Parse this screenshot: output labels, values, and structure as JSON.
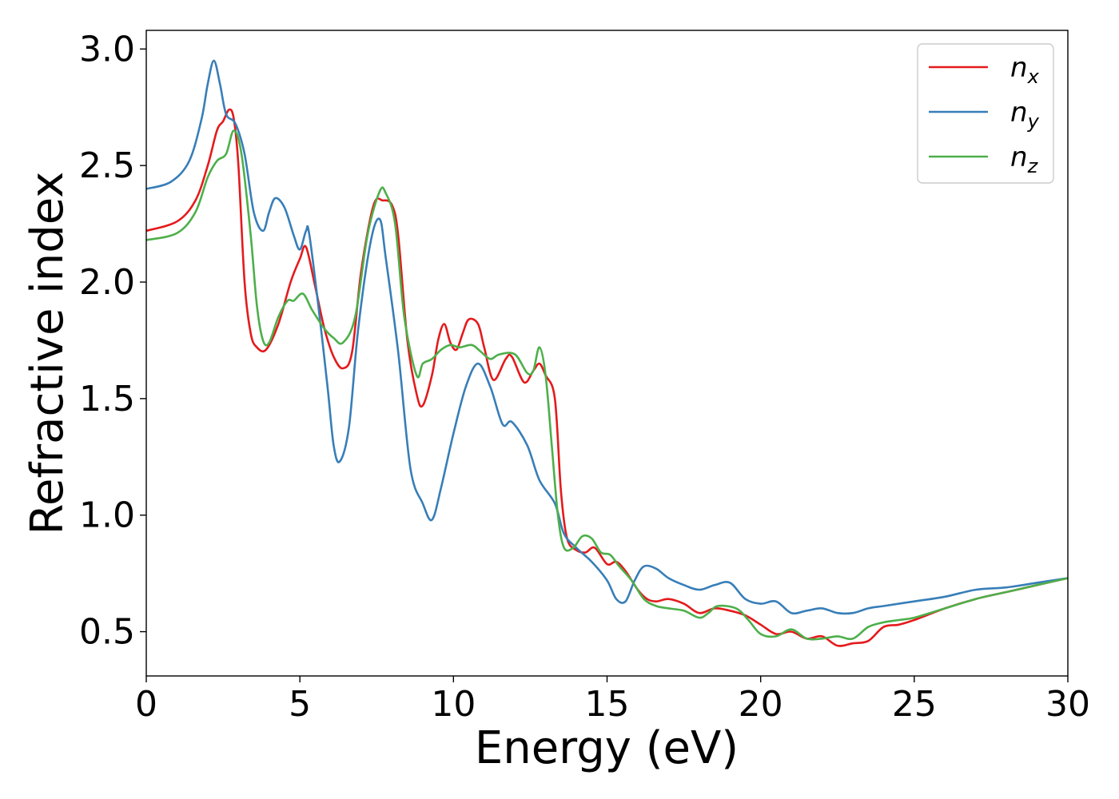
{
  "chart_data": {
    "type": "line",
    "xlabel": "Energy (eV)",
    "ylabel": "Refractive index",
    "xlim": [
      0,
      30
    ],
    "ylim": [
      0.31,
      3.08
    ],
    "xticks": [
      0,
      5,
      10,
      15,
      20,
      25,
      30
    ],
    "xtick_labels": [
      "0",
      "5",
      "10",
      "15",
      "20",
      "25",
      "30"
    ],
    "yticks": [
      0.5,
      1.0,
      1.5,
      2.0,
      2.5,
      3.0
    ],
    "ytick_labels": [
      "0.5",
      "1.0",
      "1.5",
      "2.0",
      "2.5",
      "3.0"
    ],
    "grid": false,
    "legend_position": "top-right",
    "series": [
      {
        "name": "n",
        "subscript": "x",
        "color": "#e41a1c",
        "points": [
          [
            0,
            2.22
          ],
          [
            1,
            2.26
          ],
          [
            1.6,
            2.35
          ],
          [
            2,
            2.5
          ],
          [
            2.3,
            2.65
          ],
          [
            2.5,
            2.69
          ],
          [
            2.7,
            2.74
          ],
          [
            2.85,
            2.7
          ],
          [
            3.0,
            2.5
          ],
          [
            3.2,
            2.0
          ],
          [
            3.4,
            1.78
          ],
          [
            3.6,
            1.72
          ],
          [
            3.9,
            1.71
          ],
          [
            4.3,
            1.82
          ],
          [
            4.7,
            2.0
          ],
          [
            5.0,
            2.1
          ],
          [
            5.2,
            2.15
          ],
          [
            5.5,
            1.98
          ],
          [
            5.8,
            1.8
          ],
          [
            6.1,
            1.68
          ],
          [
            6.4,
            1.63
          ],
          [
            6.7,
            1.7
          ],
          [
            7.0,
            2.05
          ],
          [
            7.4,
            2.33
          ],
          [
            7.7,
            2.35
          ],
          [
            8.0,
            2.33
          ],
          [
            8.2,
            2.2
          ],
          [
            8.5,
            1.75
          ],
          [
            8.8,
            1.52
          ],
          [
            9.0,
            1.47
          ],
          [
            9.3,
            1.6
          ],
          [
            9.5,
            1.75
          ],
          [
            9.7,
            1.82
          ],
          [
            9.9,
            1.74
          ],
          [
            10.1,
            1.71
          ],
          [
            10.3,
            1.78
          ],
          [
            10.5,
            1.84
          ],
          [
            10.8,
            1.82
          ],
          [
            11.0,
            1.72
          ],
          [
            11.3,
            1.58
          ],
          [
            11.7,
            1.67
          ],
          [
            11.9,
            1.68
          ],
          [
            12.3,
            1.57
          ],
          [
            12.6,
            1.62
          ],
          [
            12.8,
            1.65
          ],
          [
            13.0,
            1.6
          ],
          [
            13.3,
            1.5
          ],
          [
            13.5,
            1.1
          ],
          [
            13.7,
            0.9
          ],
          [
            14.0,
            0.85
          ],
          [
            14.3,
            0.84
          ],
          [
            14.6,
            0.86
          ],
          [
            15.0,
            0.79
          ],
          [
            15.3,
            0.8
          ],
          [
            15.6,
            0.76
          ],
          [
            16.0,
            0.68
          ],
          [
            16.3,
            0.64
          ],
          [
            16.6,
            0.63
          ],
          [
            17.0,
            0.64
          ],
          [
            17.5,
            0.62
          ],
          [
            18.0,
            0.58
          ],
          [
            18.5,
            0.6
          ],
          [
            19.0,
            0.59
          ],
          [
            19.5,
            0.57
          ],
          [
            20.0,
            0.53
          ],
          [
            20.5,
            0.49
          ],
          [
            21.0,
            0.5
          ],
          [
            21.5,
            0.47
          ],
          [
            22.0,
            0.48
          ],
          [
            22.5,
            0.44
          ],
          [
            23.0,
            0.45
          ],
          [
            23.5,
            0.46
          ],
          [
            24.0,
            0.52
          ],
          [
            24.5,
            0.53
          ],
          [
            25.0,
            0.55
          ],
          [
            26.0,
            0.6
          ],
          [
            27.0,
            0.64
          ],
          [
            28.0,
            0.67
          ],
          [
            29.0,
            0.7
          ],
          [
            30.0,
            0.73
          ]
        ]
      },
      {
        "name": "n",
        "subscript": "y",
        "color": "#377eb8",
        "points": [
          [
            0,
            2.4
          ],
          [
            0.8,
            2.43
          ],
          [
            1.4,
            2.52
          ],
          [
            1.8,
            2.7
          ],
          [
            2.0,
            2.85
          ],
          [
            2.2,
            2.95
          ],
          [
            2.4,
            2.85
          ],
          [
            2.6,
            2.72
          ],
          [
            2.9,
            2.68
          ],
          [
            3.2,
            2.55
          ],
          [
            3.5,
            2.3
          ],
          [
            3.8,
            2.22
          ],
          [
            4.0,
            2.3
          ],
          [
            4.2,
            2.36
          ],
          [
            4.5,
            2.32
          ],
          [
            4.8,
            2.2
          ],
          [
            5.0,
            2.14
          ],
          [
            5.2,
            2.22
          ],
          [
            5.3,
            2.21
          ],
          [
            5.6,
            1.9
          ],
          [
            5.9,
            1.55
          ],
          [
            6.1,
            1.3
          ],
          [
            6.3,
            1.23
          ],
          [
            6.6,
            1.38
          ],
          [
            6.9,
            1.8
          ],
          [
            7.3,
            2.17
          ],
          [
            7.6,
            2.27
          ],
          [
            7.8,
            2.1
          ],
          [
            8.2,
            1.7
          ],
          [
            8.6,
            1.2
          ],
          [
            9.0,
            1.05
          ],
          [
            9.3,
            0.98
          ],
          [
            9.6,
            1.12
          ],
          [
            10.0,
            1.35
          ],
          [
            10.4,
            1.55
          ],
          [
            10.8,
            1.65
          ],
          [
            11.2,
            1.55
          ],
          [
            11.6,
            1.39
          ],
          [
            11.9,
            1.4
          ],
          [
            12.4,
            1.3
          ],
          [
            12.8,
            1.15
          ],
          [
            13.3,
            1.05
          ],
          [
            13.6,
            0.92
          ],
          [
            14.0,
            0.86
          ],
          [
            14.5,
            0.8
          ],
          [
            15.0,
            0.72
          ],
          [
            15.3,
            0.64
          ],
          [
            15.6,
            0.63
          ],
          [
            15.9,
            0.72
          ],
          [
            16.2,
            0.78
          ],
          [
            16.6,
            0.77
          ],
          [
            17.0,
            0.73
          ],
          [
            17.5,
            0.7
          ],
          [
            18.0,
            0.68
          ],
          [
            18.5,
            0.7
          ],
          [
            19.0,
            0.71
          ],
          [
            19.5,
            0.64
          ],
          [
            20.0,
            0.62
          ],
          [
            20.5,
            0.63
          ],
          [
            21.0,
            0.58
          ],
          [
            21.5,
            0.59
          ],
          [
            22.0,
            0.6
          ],
          [
            22.5,
            0.58
          ],
          [
            23.0,
            0.58
          ],
          [
            23.5,
            0.6
          ],
          [
            24.0,
            0.61
          ],
          [
            25.0,
            0.63
          ],
          [
            26.0,
            0.65
          ],
          [
            27.0,
            0.68
          ],
          [
            28.0,
            0.69
          ],
          [
            29.0,
            0.71
          ],
          [
            30.0,
            0.73
          ]
        ]
      },
      {
        "name": "n",
        "subscript": "z",
        "color": "#4daf4a",
        "points": [
          [
            0,
            2.18
          ],
          [
            1,
            2.21
          ],
          [
            1.6,
            2.3
          ],
          [
            2.0,
            2.45
          ],
          [
            2.3,
            2.52
          ],
          [
            2.6,
            2.55
          ],
          [
            2.85,
            2.65
          ],
          [
            3.1,
            2.55
          ],
          [
            3.4,
            2.2
          ],
          [
            3.6,
            1.9
          ],
          [
            3.8,
            1.75
          ],
          [
            4.0,
            1.74
          ],
          [
            4.3,
            1.85
          ],
          [
            4.6,
            1.92
          ],
          [
            4.8,
            1.92
          ],
          [
            5.1,
            1.95
          ],
          [
            5.4,
            1.88
          ],
          [
            5.8,
            1.8
          ],
          [
            6.1,
            1.76
          ],
          [
            6.4,
            1.74
          ],
          [
            6.8,
            1.85
          ],
          [
            7.2,
            2.2
          ],
          [
            7.6,
            2.39
          ],
          [
            7.8,
            2.38
          ],
          [
            8.1,
            2.25
          ],
          [
            8.4,
            1.85
          ],
          [
            8.8,
            1.6
          ],
          [
            9.0,
            1.65
          ],
          [
            9.3,
            1.67
          ],
          [
            9.6,
            1.71
          ],
          [
            9.9,
            1.73
          ],
          [
            10.2,
            1.72
          ],
          [
            10.6,
            1.73
          ],
          [
            10.9,
            1.7
          ],
          [
            11.2,
            1.67
          ],
          [
            11.5,
            1.69
          ],
          [
            12.0,
            1.69
          ],
          [
            12.4,
            1.61
          ],
          [
            12.6,
            1.62
          ],
          [
            12.8,
            1.72
          ],
          [
            13.0,
            1.6
          ],
          [
            13.2,
            1.3
          ],
          [
            13.4,
            1.0
          ],
          [
            13.6,
            0.86
          ],
          [
            13.9,
            0.86
          ],
          [
            14.2,
            0.91
          ],
          [
            14.5,
            0.9
          ],
          [
            14.8,
            0.84
          ],
          [
            15.1,
            0.83
          ],
          [
            15.4,
            0.78
          ],
          [
            15.8,
            0.72
          ],
          [
            16.2,
            0.64
          ],
          [
            16.6,
            0.61
          ],
          [
            17.0,
            0.6
          ],
          [
            17.5,
            0.59
          ],
          [
            18.0,
            0.56
          ],
          [
            18.3,
            0.58
          ],
          [
            18.6,
            0.61
          ],
          [
            19.2,
            0.6
          ],
          [
            19.6,
            0.55
          ],
          [
            20.0,
            0.49
          ],
          [
            20.5,
            0.48
          ],
          [
            21.0,
            0.51
          ],
          [
            21.5,
            0.47
          ],
          [
            22.0,
            0.47
          ],
          [
            22.5,
            0.48
          ],
          [
            23.0,
            0.47
          ],
          [
            23.5,
            0.52
          ],
          [
            24.0,
            0.54
          ],
          [
            24.5,
            0.55
          ],
          [
            25.0,
            0.56
          ],
          [
            26.0,
            0.6
          ],
          [
            27.0,
            0.64
          ],
          [
            28.0,
            0.67
          ],
          [
            29.0,
            0.7
          ],
          [
            30.0,
            0.73
          ]
        ]
      }
    ]
  }
}
